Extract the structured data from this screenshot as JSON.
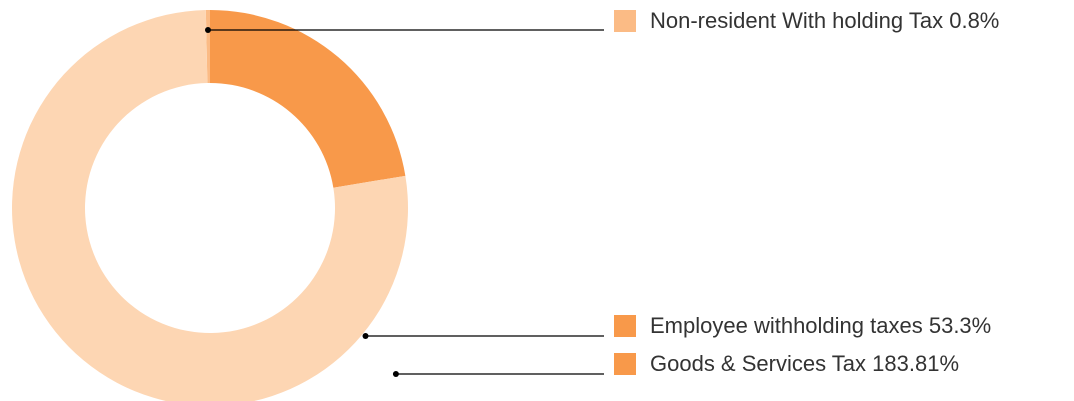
{
  "chart_data": {
    "type": "pie",
    "variant": "donut",
    "title": "",
    "slices": [
      {
        "label": "Non-resident With holding Tax",
        "value_text": "0.8%",
        "value": 0.8,
        "color": "#fbbb85"
      },
      {
        "label": "Employee withholding taxes",
        "value_text": "53.3%",
        "value": 53.3,
        "color": "#f8994a"
      },
      {
        "label": "Goods & Services Tax",
        "value_text": "183.81%",
        "value": 183.81,
        "color": "#fdd6b3"
      }
    ],
    "legend": [
      {
        "label": "Non-resident With holding Tax",
        "value_text": "0.8%",
        "color": "#fbbb85"
      },
      {
        "label": "Employee withholding taxes",
        "value_text": "53.3%",
        "color": "#f8994a"
      },
      {
        "label": "Goods & Services Tax",
        "value_text": "183.81%",
        "color": "#f8994a"
      }
    ],
    "legend_placement": "right"
  }
}
